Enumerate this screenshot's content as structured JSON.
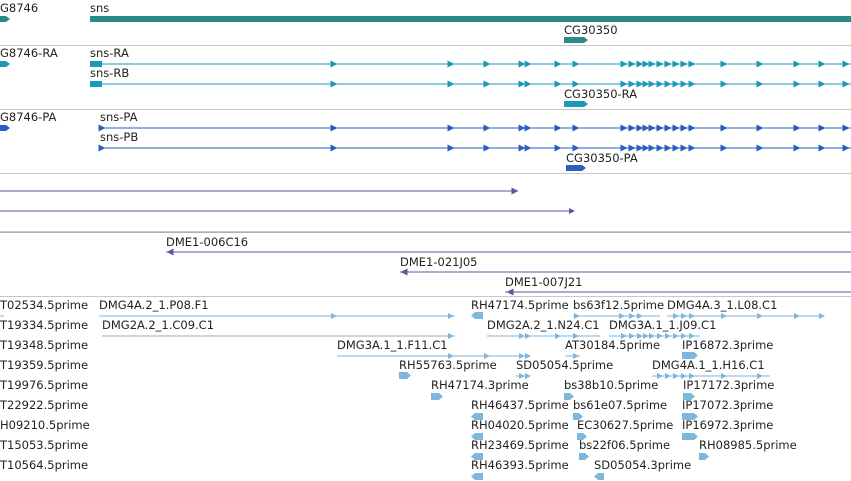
{
  "colors": {
    "gene": "#2a8a88",
    "transcript": "#1a9ab8",
    "protein": "#2a5fbf",
    "clone": "#6a4fa8",
    "est": "#7fb6dc",
    "divider": "#c8c8c8"
  },
  "gene_track": {
    "labels": {
      "left_gene": "G8746",
      "main_gene": "sns",
      "second_gene": "CG30350"
    }
  },
  "transcript_track": {
    "labels": {
      "left": "G8746-RA",
      "a": "sns-RA",
      "b": "sns-RB",
      "c": "CG30350-RA"
    }
  },
  "protein_track": {
    "labels": {
      "left": "G8746-PA",
      "a": "sns-PA",
      "b": "sns-PB",
      "c": "CG30350-PA"
    }
  },
  "clone_track": {
    "labels": {
      "c1": "DME1-006C16",
      "c2": "DME1-021J05",
      "c3": "DME1-007J21"
    }
  },
  "est_track": {
    "labels": [
      "T02534.5prime",
      "DMG4A.2_1.P08.F1",
      "RH47174.5prime",
      "bs63f12.5prime",
      "DMG4A.3_1.L08.C1",
      "T19334.5prime",
      "DMG2A.2_1.C09.C1",
      "DMG2A.2_1.N24.C1",
      "DMG3A.1_1.J09.C1",
      "T19348.5prime",
      "DMG3A.1_1.F11.C1",
      "AT30184.5prime",
      "IP16872.3prime",
      "T19359.5prime",
      "RH55763.5prime",
      "SD05054.5prime",
      "DMG4A.1_1.H16.C1",
      "T19976.5prime",
      "RH47174.3prime",
      "bs38b10.5prime",
      "IP17172.3prime",
      "T22922.5prime",
      "RH46437.5prime",
      "bs61e07.5prime",
      "IP17072.3prime",
      "H09210.5prime",
      "RH04020.5prime",
      "EC30627.5prime",
      "IP16972.3prime",
      "T15053.5prime",
      "RH23469.5prime",
      "bs22f06.5prime",
      "RH08985.5prime",
      "T10564.5prime",
      "RH46393.5prime",
      "SD05054.3prime"
    ]
  }
}
